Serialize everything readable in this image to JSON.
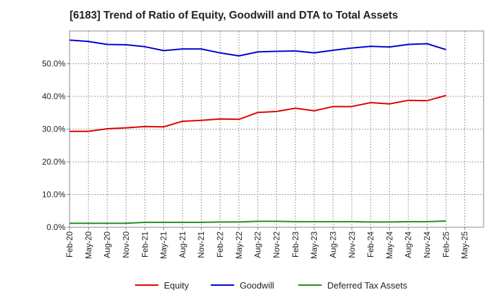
{
  "chart_data": {
    "type": "line",
    "title": "[6183]  Trend of Ratio of Equity, Goodwill and DTA to Total Assets",
    "xlabel": "",
    "ylabel": "",
    "ylim": [
      0,
      60
    ],
    "yticks": [
      0,
      10,
      20,
      30,
      40,
      50
    ],
    "ytick_labels": [
      "0.0%",
      "10.0%",
      "20.0%",
      "30.0%",
      "40.0%",
      "50.0%"
    ],
    "x_tick_labels": [
      "Feb-20",
      "May-20",
      "Aug-20",
      "Nov-20",
      "Feb-21",
      "May-21",
      "Aug-21",
      "Nov-21",
      "Feb-22",
      "May-22",
      "Aug-22",
      "Nov-22",
      "Feb-23",
      "May-23",
      "Aug-23",
      "Nov-23",
      "Feb-24",
      "May-24",
      "Aug-24",
      "Nov-24",
      "Feb-25",
      "May-25"
    ],
    "x": [
      "Feb-20",
      "May-20",
      "Aug-20",
      "Nov-20",
      "Feb-21",
      "May-21",
      "Aug-21",
      "Nov-21",
      "Feb-22",
      "May-22",
      "Aug-22",
      "Nov-22",
      "Feb-23",
      "May-23",
      "Aug-23",
      "Nov-23",
      "Feb-24",
      "May-24",
      "Aug-24",
      "Nov-24",
      "Feb-25"
    ],
    "grid": true,
    "legend_position": "bottom",
    "series": [
      {
        "name": "Equity",
        "color": "#dd0000",
        "values": [
          29.3,
          29.3,
          30.1,
          30.4,
          30.8,
          30.7,
          32.4,
          32.7,
          33.1,
          33.0,
          35.1,
          35.4,
          36.4,
          35.6,
          36.9,
          36.9,
          38.1,
          37.7,
          38.8,
          38.7,
          40.3
        ]
      },
      {
        "name": "Goodwill",
        "color": "#0000cc",
        "values": [
          57.2,
          56.8,
          55.9,
          55.8,
          55.2,
          54.0,
          54.5,
          54.5,
          53.3,
          52.4,
          53.6,
          53.8,
          53.9,
          53.3,
          54.1,
          54.8,
          55.3,
          55.1,
          55.9,
          56.1,
          54.3
        ]
      },
      {
        "name": "Deferred Tax Assets",
        "color": "#228b22",
        "values": [
          1.2,
          1.2,
          1.2,
          1.2,
          1.5,
          1.5,
          1.5,
          1.5,
          1.6,
          1.6,
          1.8,
          1.8,
          1.7,
          1.7,
          1.7,
          1.7,
          1.6,
          1.6,
          1.7,
          1.7,
          1.9
        ]
      }
    ]
  }
}
